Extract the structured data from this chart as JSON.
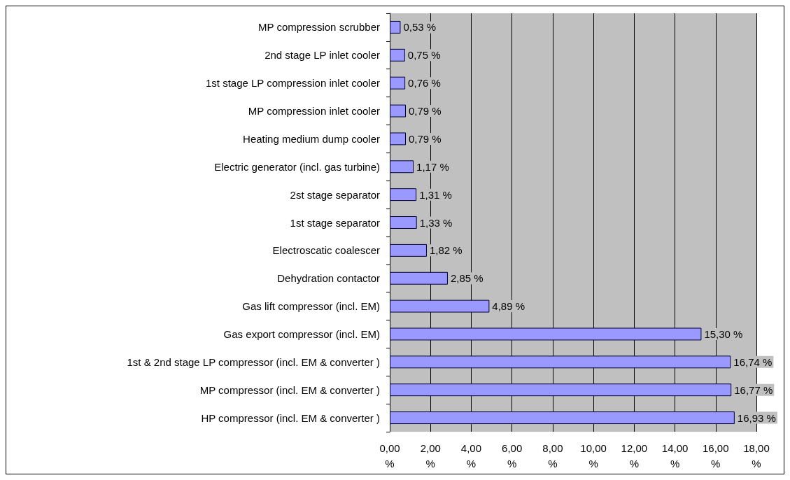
{
  "chart_data": {
    "type": "bar",
    "orientation": "horizontal",
    "categories": [
      "MP compression scrubber",
      "2nd stage LP inlet cooler",
      "1st stage LP compression inlet cooler",
      "MP compression inlet cooler",
      "Heating medium dump cooler",
      "Electric generator (incl. gas turbine)",
      "2st stage separator",
      "1st stage separator",
      "Electroscatic coalescer",
      "Dehydration contactor",
      "Gas lift compressor (incl. EM)",
      "Gas export compressor (incl. EM)",
      "1st & 2nd stage LP compressor (incl. EM & converter )",
      "MP compressor (incl. EM & converter )",
      "HP compressor (incl. EM & converter )"
    ],
    "values": [
      0.53,
      0.75,
      0.76,
      0.79,
      0.79,
      1.17,
      1.31,
      1.33,
      1.82,
      2.85,
      4.89,
      15.3,
      16.74,
      16.77,
      16.93
    ],
    "value_labels": [
      "0,53 %",
      "0,75 %",
      "0,76 %",
      "0,79 %",
      "0,79 %",
      "1,17 %",
      "1,31 %",
      "1,33 %",
      "1,82 %",
      "2,85 %",
      "4,89 %",
      "15,30 %",
      "16,74 %",
      "16,77 %",
      "16,93 %"
    ],
    "color": "#9999ff",
    "xlim": [
      0,
      18
    ],
    "xticks": [
      {
        "value": 0,
        "label": "0,00 %"
      },
      {
        "value": 2,
        "label": "2,00 %"
      },
      {
        "value": 4,
        "label": "4,00 %"
      },
      {
        "value": 6,
        "label": "6,00 %"
      },
      {
        "value": 8,
        "label": "8,00 %"
      },
      {
        "value": 10,
        "label": "10,00 %"
      },
      {
        "value": 12,
        "label": "12,00 %"
      },
      {
        "value": 14,
        "label": "14,00 %"
      },
      {
        "value": 16,
        "label": "16,00 %"
      },
      {
        "value": 18,
        "label": "18,00 %"
      }
    ],
    "grid": "x"
  }
}
